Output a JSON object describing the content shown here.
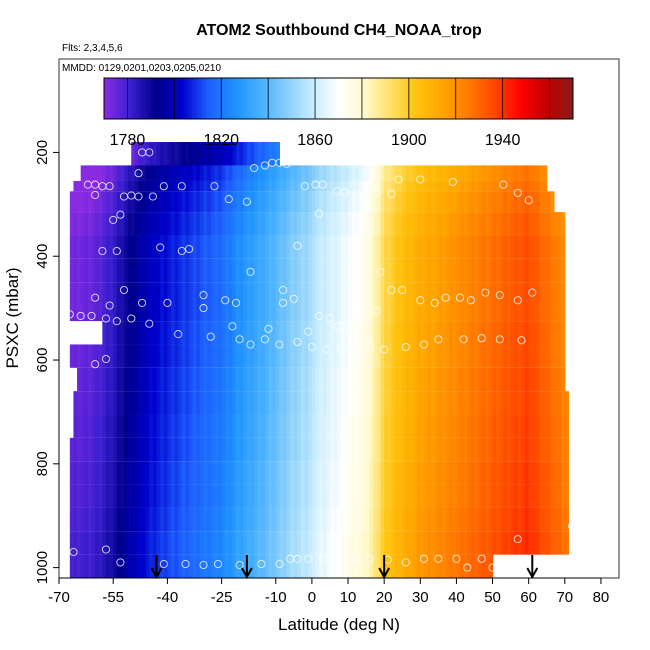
{
  "chart_data": {
    "type": "heatmap",
    "title": "ATOM2 Southbound CH4_NOAA_trop",
    "flights_note": "Flts: 2,3,4,5,6",
    "dates_note": "MMDD: 0129,0201,0203,0205,0210",
    "xlabel": "Latitude (deg N)",
    "ylabel": "PSXC (mbar)",
    "xlim": [
      -70,
      85
    ],
    "ylim": [
      1020,
      20
    ],
    "x_ticks": [
      -70,
      -55,
      -40,
      -25,
      -10,
      0,
      10,
      20,
      30,
      40,
      50,
      60,
      70,
      80
    ],
    "x_tick_labels": [
      "-70",
      "-55",
      "-40",
      "-25",
      "-10",
      "0",
      "10",
      "20",
      "30",
      "40",
      "50",
      "60",
      "70",
      "80"
    ],
    "y_ticks": [
      200,
      400,
      600,
      800,
      1000
    ],
    "y_tick_labels": [
      "200",
      "400",
      "600",
      "800",
      "1000"
    ],
    "colorbar": {
      "min": 1770,
      "max": 1970,
      "boundaries": [
        1780,
        1800,
        1820,
        1840,
        1860,
        1880,
        1900,
        1920,
        1940,
        1960
      ],
      "tick_values": [
        1780,
        1820,
        1860,
        1900,
        1940
      ],
      "tick_labels": [
        "1780",
        "1820",
        "1860",
        "1900",
        "1940"
      ],
      "colors": [
        "#8a2be2",
        "#3a1fd0",
        "#00008b",
        "#0000cd",
        "#1e5eff",
        "#1e90ff",
        "#47b0ff",
        "#87cefa",
        "#c6ecff",
        "#ffffff",
        "#fffacd",
        "#ffe066",
        "#ffc20e",
        "#ffa500",
        "#ff7a00",
        "#ff4500",
        "#ff0000",
        "#c00000",
        "#8b1a1a"
      ]
    },
    "surface_pressure_marks": {
      "latitudes": [
        -43,
        -18,
        20,
        61
      ],
      "pressure": 1005
    },
    "rows": [
      {
        "p_top": 180,
        "p_bot": 230,
        "lat_min": -50,
        "lat_max": -9,
        "shift": -18
      },
      {
        "p_top": 225,
        "p_bot": 255,
        "lat_min": -64,
        "lat_max": 65,
        "shift": -8
      },
      {
        "p_top": 255,
        "p_bot": 275,
        "lat_min": -66,
        "lat_max": 65,
        "shift": -6
      },
      {
        "p_top": 275,
        "p_bot": 315,
        "lat_min": -67,
        "lat_max": 67,
        "shift": -4
      },
      {
        "p_top": 315,
        "p_bot": 360,
        "lat_min": -67,
        "lat_max": 70,
        "shift": -2
      },
      {
        "p_top": 360,
        "p_bot": 405,
        "lat_min": -67,
        "lat_max": 70,
        "shift": 0
      },
      {
        "p_top": 405,
        "p_bot": 450,
        "lat_min": -67,
        "lat_max": 70,
        "shift": 0
      },
      {
        "p_top": 450,
        "p_bot": 495,
        "lat_min": -67,
        "lat_max": 70,
        "shift": 0
      },
      {
        "p_top": 495,
        "p_bot": 525,
        "lat_min": -67,
        "lat_max": 70,
        "shift": 0
      },
      {
        "p_top": 525,
        "p_bot": 570,
        "lat_min": -58,
        "lat_max": 70,
        "shift": 1
      },
      {
        "p_top": 570,
        "p_bot": 615,
        "lat_min": -67,
        "lat_max": 70,
        "shift": 1
      },
      {
        "p_top": 615,
        "p_bot": 660,
        "lat_min": -65,
        "lat_max": 70,
        "shift": 2
      },
      {
        "p_top": 660,
        "p_bot": 705,
        "lat_min": -66,
        "lat_max": 71,
        "shift": 2
      },
      {
        "p_top": 705,
        "p_bot": 750,
        "lat_min": -66,
        "lat_max": 71,
        "shift": 3
      },
      {
        "p_top": 750,
        "p_bot": 795,
        "lat_min": -67,
        "lat_max": 71,
        "shift": 3
      },
      {
        "p_top": 795,
        "p_bot": 840,
        "lat_min": -67,
        "lat_max": 71,
        "shift": 4
      },
      {
        "p_top": 840,
        "p_bot": 885,
        "lat_min": -67,
        "lat_max": 71,
        "shift": 4
      },
      {
        "p_top": 885,
        "p_bot": 930,
        "lat_min": -67,
        "lat_max": 71,
        "shift": 5
      },
      {
        "p_top": 930,
        "p_bot": 975,
        "lat_min": -67,
        "lat_max": 71,
        "shift": 6
      },
      {
        "p_top": 975,
        "p_bot": 1020,
        "lat_min": -67,
        "lat_max": 50,
        "shift": 6
      }
    ],
    "profile": {
      "lat": [
        -67,
        -60,
        -55,
        -50,
        -45,
        -40,
        -35,
        -30,
        -25,
        -20,
        -15,
        -10,
        -5,
        0,
        5,
        10,
        15,
        18,
        20,
        25,
        30,
        40,
        50,
        55,
        60,
        65,
        71
      ],
      "ch4": [
        1775,
        1778,
        1785,
        1795,
        1803,
        1808,
        1812,
        1816,
        1820,
        1828,
        1835,
        1842,
        1850,
        1856,
        1862,
        1868,
        1875,
        1885,
        1895,
        1905,
        1912,
        1920,
        1928,
        1932,
        1935,
        1928,
        1920
      ]
    },
    "sample_points": [
      [
        -47,
        200
      ],
      [
        -45,
        200
      ],
      [
        -48,
        240
      ],
      [
        -36,
        265
      ],
      [
        -41,
        265
      ],
      [
        -27,
        265
      ],
      [
        -23,
        290
      ],
      [
        -18,
        295
      ],
      [
        -16,
        230
      ],
      [
        -13,
        225
      ],
      [
        -11,
        220
      ],
      [
        -9,
        220
      ],
      [
        -7,
        222
      ],
      [
        -2,
        265
      ],
      [
        1,
        262
      ],
      [
        3,
        262
      ],
      [
        2,
        318
      ],
      [
        7,
        275
      ],
      [
        9,
        277
      ],
      [
        13,
        280
      ],
      [
        18,
        278
      ],
      [
        22,
        280
      ],
      [
        24,
        252
      ],
      [
        30,
        252
      ],
      [
        39,
        257
      ],
      [
        53,
        262
      ],
      [
        57,
        278
      ],
      [
        60,
        292
      ],
      [
        -62,
        262
      ],
      [
        -60,
        262
      ],
      [
        -58,
        265
      ],
      [
        -56,
        265
      ],
      [
        -60,
        282
      ],
      [
        -52,
        285
      ],
      [
        -50,
        283
      ],
      [
        -48,
        285
      ],
      [
        -44,
        285
      ],
      [
        -55,
        330
      ],
      [
        -53,
        320
      ],
      [
        -58,
        390
      ],
      [
        -54,
        390
      ],
      [
        -36,
        390
      ],
      [
        -34,
        386
      ],
      [
        -42,
        383
      ],
      [
        -17,
        430
      ],
      [
        -4,
        380
      ],
      [
        19,
        430
      ],
      [
        -30,
        475
      ],
      [
        -24,
        485
      ],
      [
        -21,
        490
      ],
      [
        -8,
        465
      ],
      [
        -8,
        490
      ],
      [
        -5,
        482
      ],
      [
        -12,
        540
      ],
      [
        -1,
        545
      ],
      [
        2,
        515
      ],
      [
        5,
        520
      ],
      [
        7,
        535
      ],
      [
        9,
        545
      ],
      [
        12,
        490
      ],
      [
        14,
        485
      ],
      [
        18,
        505
      ],
      [
        22,
        465
      ],
      [
        25,
        465
      ],
      [
        30,
        485
      ],
      [
        34,
        490
      ],
      [
        37,
        480
      ],
      [
        41,
        480
      ],
      [
        44,
        485
      ],
      [
        48,
        470
      ],
      [
        52,
        475
      ],
      [
        57,
        485
      ],
      [
        61,
        470
      ],
      [
        -67,
        512
      ],
      [
        -60,
        480
      ],
      [
        -56,
        495
      ],
      [
        -52,
        465
      ],
      [
        -47,
        490
      ],
      [
        -40,
        490
      ],
      [
        -37,
        550
      ],
      [
        -30,
        500
      ],
      [
        -28,
        555
      ],
      [
        -22,
        535
      ],
      [
        -20,
        560
      ],
      [
        -17,
        570
      ],
      [
        -13,
        560
      ],
      [
        -9,
        570
      ],
      [
        -4,
        565
      ],
      [
        0,
        575
      ],
      [
        4,
        580
      ],
      [
        8,
        580
      ],
      [
        12,
        583
      ],
      [
        16,
        570
      ],
      [
        20,
        580
      ],
      [
        26,
        575
      ],
      [
        31,
        570
      ],
      [
        35,
        560
      ],
      [
        42,
        560
      ],
      [
        47,
        558
      ],
      [
        52,
        560
      ],
      [
        58,
        562
      ],
      [
        -61,
        515
      ],
      [
        -57,
        520
      ],
      [
        -54,
        525
      ],
      [
        -50,
        520
      ],
      [
        -45,
        530
      ],
      [
        -64,
        515
      ],
      [
        -60,
        608
      ],
      [
        -57,
        598
      ],
      [
        -66,
        970
      ],
      [
        -57,
        965
      ],
      [
        -53,
        990
      ],
      [
        -41,
        993
      ],
      [
        -35,
        993
      ],
      [
        -30,
        995
      ],
      [
        -26,
        993
      ],
      [
        -20,
        995
      ],
      [
        -14,
        993
      ],
      [
        -9,
        993
      ],
      [
        -6,
        983
      ],
      [
        -4,
        983
      ],
      [
        -1,
        983
      ],
      [
        3,
        983
      ],
      [
        7,
        983
      ],
      [
        12,
        983
      ],
      [
        16,
        983
      ],
      [
        21,
        985
      ],
      [
        26,
        990
      ],
      [
        31,
        983
      ],
      [
        35,
        983
      ],
      [
        40,
        983
      ],
      [
        43,
        1000
      ],
      [
        47,
        983
      ],
      [
        50,
        1000
      ],
      [
        57,
        945
      ],
      [
        72,
        920
      ]
    ]
  }
}
